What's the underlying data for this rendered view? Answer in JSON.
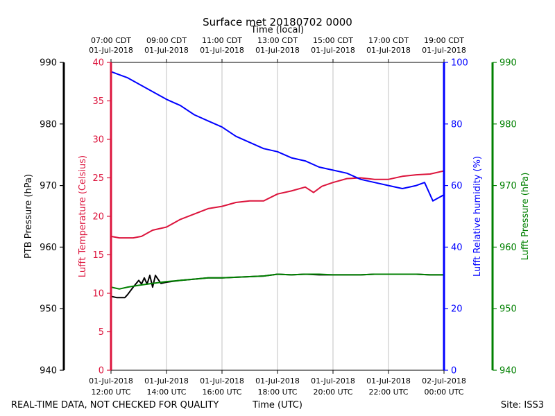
{
  "chart_data": {
    "type": "line",
    "title": "Surface met 20180702 0000",
    "top_axis_label": "Time (local)",
    "bottom_axis_label": "Time (UTC)",
    "footer_left": "REAL-TIME DATA, NOT CHECKED FOR QUALITY",
    "footer_right": "Site: ISS3",
    "x_ticks_utc": [
      {
        "hour": 12,
        "line1": "01-Jul-2018",
        "line2": "12:00 UTC"
      },
      {
        "hour": 14,
        "line1": "01-Jul-2018",
        "line2": "14:00 UTC"
      },
      {
        "hour": 16,
        "line1": "01-Jul-2018",
        "line2": "16:00 UTC"
      },
      {
        "hour": 18,
        "line1": "01-Jul-2018",
        "line2": "18:00 UTC"
      },
      {
        "hour": 20,
        "line1": "01-Jul-2018",
        "line2": "20:00 UTC"
      },
      {
        "hour": 22,
        "line1": "01-Jul-2018",
        "line2": "22:00 UTC"
      },
      {
        "hour": 24,
        "line1": "02-Jul-2018",
        "line2": "00:00 UTC"
      }
    ],
    "x_ticks_local": [
      {
        "hour": 12,
        "line1": "07:00 CDT",
        "line2": "01-Jul-2018"
      },
      {
        "hour": 14,
        "line1": "09:00 CDT",
        "line2": "01-Jul-2018"
      },
      {
        "hour": 16,
        "line1": "11:00 CDT",
        "line2": "01-Jul-2018"
      },
      {
        "hour": 18,
        "line1": "13:00 CDT",
        "line2": "01-Jul-2018"
      },
      {
        "hour": 20,
        "line1": "15:00 CDT",
        "line2": "01-Jul-2018"
      },
      {
        "hour": 22,
        "line1": "17:00 CDT",
        "line2": "01-Jul-2018"
      },
      {
        "hour": 24,
        "line1": "19:00 CDT",
        "line2": "01-Jul-2018"
      }
    ],
    "xlim": [
      12,
      24
    ],
    "axes": {
      "ptb_pressure": {
        "label": "PTB Pressure (hPa)",
        "range": [
          940,
          990
        ],
        "ticks": [
          940,
          950,
          960,
          970,
          980,
          990
        ],
        "color": "#000000"
      },
      "temperature": {
        "label": "Lufft Temperature (Celsius)",
        "range": [
          0,
          40
        ],
        "ticks": [
          0,
          5,
          10,
          15,
          20,
          25,
          30,
          35,
          40
        ],
        "color": "#dc143c"
      },
      "humidity": {
        "label": "Lufft Relative humidity (%)",
        "range": [
          0,
          100
        ],
        "ticks": [
          0,
          20,
          40,
          60,
          80,
          100
        ],
        "color": "#0000ff"
      },
      "lufft_pressure": {
        "label": "Lufft Pressure (hPa)",
        "range": [
          940,
          990
        ],
        "ticks": [
          940,
          950,
          960,
          970,
          980,
          990
        ],
        "color": "#008000"
      }
    },
    "series": [
      {
        "name": "Lufft Temperature",
        "axis": "temperature",
        "color": "#dc143c",
        "x": [
          12.0,
          12.3,
          12.8,
          13.1,
          13.5,
          14.0,
          14.5,
          15.0,
          15.5,
          16.0,
          16.5,
          17.0,
          17.5,
          18.0,
          18.5,
          19.0,
          19.3,
          19.6,
          20.0,
          20.5,
          21.0,
          21.5,
          22.0,
          22.5,
          23.0,
          23.5,
          24.0
        ],
        "values": [
          17.4,
          17.2,
          17.2,
          17.4,
          18.2,
          18.6,
          19.6,
          20.3,
          21.0,
          21.3,
          21.8,
          22.0,
          22.0,
          22.9,
          23.3,
          23.8,
          23.1,
          23.9,
          24.4,
          24.9,
          25.0,
          24.8,
          24.8,
          25.2,
          25.4,
          25.5,
          25.9
        ]
      },
      {
        "name": "Lufft Relative humidity",
        "axis": "humidity",
        "color": "#0000ff",
        "x": [
          12.0,
          12.3,
          12.6,
          13.0,
          13.4,
          14.0,
          14.5,
          15.0,
          15.5,
          16.0,
          16.5,
          17.0,
          17.5,
          18.0,
          18.5,
          19.0,
          19.5,
          20.0,
          20.5,
          21.0,
          21.5,
          22.0,
          22.5,
          23.0,
          23.3,
          23.6,
          24.0
        ],
        "values": [
          97,
          96,
          95,
          93,
          91,
          88,
          86,
          83,
          81,
          79,
          76,
          74,
          72,
          71,
          69,
          68,
          66,
          65,
          64,
          62,
          61,
          60,
          59,
          60,
          61,
          55,
          57
        ]
      },
      {
        "name": "PTB Pressure",
        "axis": "ptb_pressure",
        "color": "#000000",
        "x": [
          12.0,
          12.2,
          12.5,
          12.6,
          12.8,
          13.0,
          13.1,
          13.2,
          13.3,
          13.4,
          13.5,
          13.6,
          13.8,
          14.0,
          14.5,
          15.0,
          15.5,
          16.0,
          16.5,
          17.0,
          17.5,
          18.0,
          18.5,
          19.0,
          19.5,
          20.0,
          20.5,
          21.0,
          21.5,
          22.0,
          22.5,
          23.0,
          23.5,
          24.0
        ],
        "values": [
          952.0,
          951.8,
          951.8,
          952.3,
          953.5,
          954.6,
          954.0,
          955.0,
          954.0,
          955.4,
          953.5,
          955.4,
          954.1,
          954.3,
          954.6,
          954.8,
          955.0,
          955.0,
          955.1,
          955.2,
          955.3,
          955.6,
          955.5,
          955.6,
          955.5,
          955.5,
          955.5,
          955.5,
          955.6,
          955.6,
          955.6,
          955.6,
          955.5,
          955.5
        ]
      },
      {
        "name": "Lufft Pressure",
        "axis": "lufft_pressure",
        "color": "#008000",
        "x": [
          12.0,
          12.3,
          12.6,
          13.0,
          13.5,
          14.0,
          14.5,
          15.0,
          15.5,
          16.0,
          16.5,
          17.0,
          17.5,
          18.0,
          18.5,
          19.0,
          19.5,
          20.0,
          20.5,
          21.0,
          21.5,
          22.0,
          22.5,
          23.0,
          23.5,
          24.0
        ],
        "values": [
          953.5,
          953.2,
          953.5,
          953.8,
          954.1,
          954.4,
          954.6,
          954.8,
          955.0,
          955.0,
          955.1,
          955.2,
          955.3,
          955.6,
          955.5,
          955.6,
          955.6,
          955.5,
          955.5,
          955.5,
          955.6,
          955.6,
          955.6,
          955.6,
          955.5,
          955.5
        ]
      }
    ]
  }
}
